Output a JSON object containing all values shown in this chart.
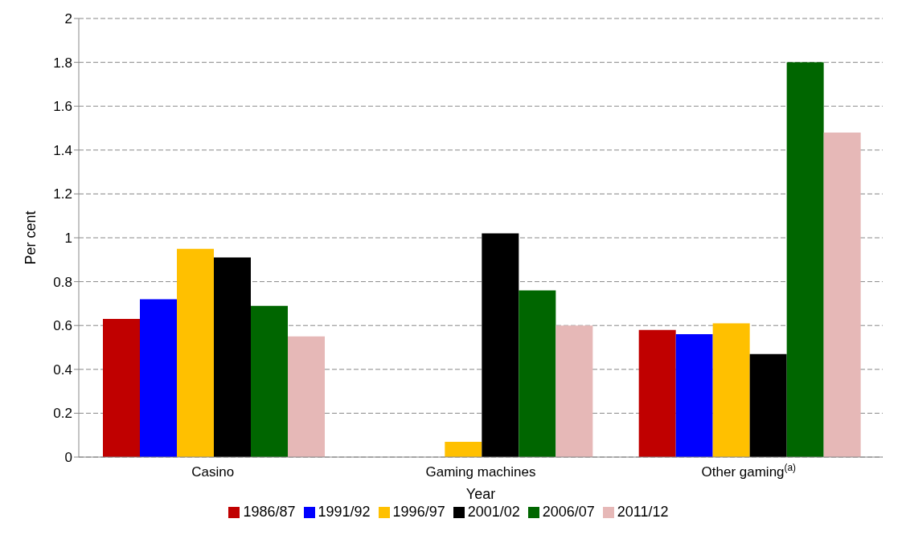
{
  "chart_data": {
    "type": "bar",
    "xlabel": "Year",
    "ylabel": "Per cent",
    "categories": [
      "Casino",
      "Gaming machines",
      "Other gaming$^{(a)}$"
    ],
    "series": [
      {
        "name": "1986/87",
        "color": "#c00000",
        "values": [
          0.63,
          null,
          0.58
        ]
      },
      {
        "name": "1991/92",
        "color": "#0000ff",
        "values": [
          0.72,
          null,
          0.56
        ]
      },
      {
        "name": "1996/97",
        "color": "#ffc000",
        "values": [
          0.95,
          0.07,
          0.61
        ]
      },
      {
        "name": "2001/02",
        "color": "#000000",
        "values": [
          0.91,
          1.02,
          0.47
        ]
      },
      {
        "name": "2006/07",
        "color": "#006600",
        "values": [
          0.69,
          0.76,
          1.8
        ]
      },
      {
        "name": "2011/12",
        "color": "#e6b8b7",
        "values": [
          0.55,
          0.6,
          1.48
        ]
      }
    ],
    "ylim": [
      0,
      2
    ],
    "yticks": [
      0,
      0.2,
      0.4,
      0.6,
      0.8,
      1,
      1.2,
      1.4,
      1.6,
      1.8,
      2
    ],
    "grid": "y",
    "legend": "bottom"
  }
}
